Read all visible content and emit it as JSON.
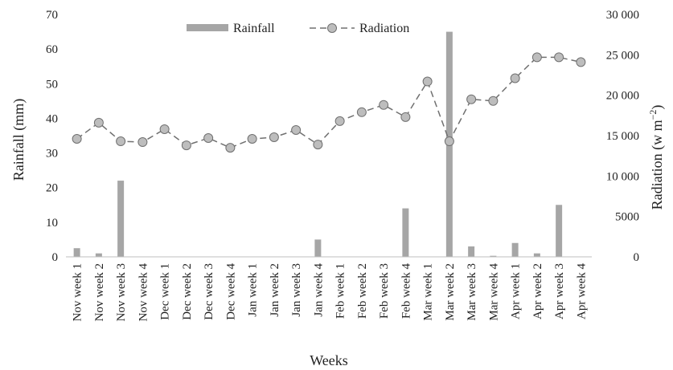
{
  "chart_data": {
    "type": "bar+line",
    "categories": [
      "Nov week 1",
      "Nov week 2",
      "Nov week 3",
      "Nov week 4",
      "Dec week 1",
      "Dec week 2",
      "Dec week 3",
      "Dec week 4",
      "Jan week 1",
      "Jan week 2",
      "Jan week 3",
      "Jan week 4",
      "Feb week 1",
      "Feb week 2",
      "Feb week 3",
      "Feb week 4",
      "Mar week 1",
      "Mar week 2",
      "Mar week 3",
      "Mar week 4",
      "Apr week 1",
      "Apr week 2",
      "Apr week 3",
      "Apr week 4"
    ],
    "series": [
      {
        "name": "Rainfall",
        "kind": "bar",
        "axis": "left",
        "color": "#a6a6a6",
        "values": [
          2.5,
          1,
          22,
          0,
          0,
          0,
          0,
          0,
          0,
          0,
          0,
          5,
          0,
          0,
          0,
          14,
          0,
          65,
          3,
          0.3,
          4,
          1,
          15,
          0
        ]
      },
      {
        "name": "Radiation",
        "kind": "line",
        "axis": "right",
        "color": "#707070",
        "values": [
          14600,
          16600,
          14300,
          14200,
          15800,
          13800,
          14700,
          13500,
          14600,
          14800,
          15700,
          13900,
          16800,
          17900,
          18800,
          17300,
          21700,
          14300,
          19500,
          19300,
          22100,
          24700,
          24700,
          24100
        ]
      }
    ],
    "xlabel": "Weeks",
    "ylabel": "Rainfall (mm)",
    "y2label": "Radiation (w m",
    "y2label_sup": "−2",
    "y2label_close": ")",
    "ylim": [
      0,
      70
    ],
    "yticks": [
      "0",
      "10",
      "20",
      "30",
      "40",
      "50",
      "60",
      "70"
    ],
    "y2lim": [
      0,
      30000
    ],
    "y2ticks": [
      "0",
      "5000",
      "10 000",
      "15 000",
      "20 000",
      "25 000",
      "30 000"
    ],
    "legend": {
      "placement": "top-center",
      "items": [
        "Rainfall",
        "Radiation"
      ]
    },
    "grid": false
  }
}
